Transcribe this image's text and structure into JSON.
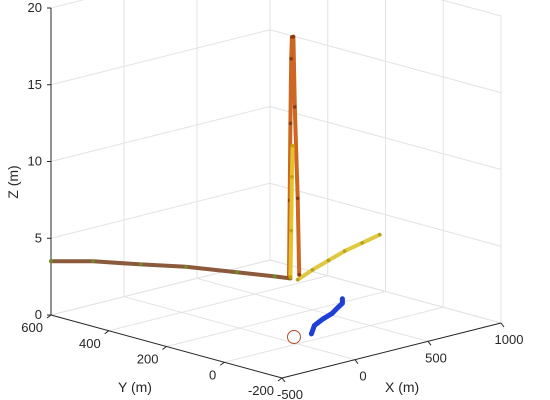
{
  "chart_data": {
    "type": "line",
    "view": "3d",
    "grid": true,
    "xlabel": "X (m)",
    "ylabel": "Y (m)",
    "zlabel": "Z (m)",
    "xlim": [
      -500,
      1000
    ],
    "ylim": [
      -200,
      600
    ],
    "zlim": [
      0,
      20
    ],
    "xticks": [
      "-500",
      "0",
      "500",
      "1000"
    ],
    "yticks": [
      "-200",
      "0",
      "200",
      "400",
      "600"
    ],
    "zticks": [
      "0",
      "5",
      "10",
      "15",
      "20"
    ],
    "series": [
      {
        "color": "#8b5a3c",
        "marker_color": "#6b8e23",
        "x": [
          -500,
          -350,
          -200,
          -50,
          100,
          200,
          250
        ],
        "y": [
          600,
          530,
          440,
          360,
          260,
          180,
          150
        ],
        "z": [
          3.5,
          3.5,
          3.4,
          3.3,
          3.1,
          3.0,
          2.9
        ]
      },
      {
        "color": "#e0c840",
        "marker_color": "#b8a020",
        "x": [
          300,
          420,
          560,
          700,
          850,
          1000
        ],
        "y": [
          150,
          160,
          175,
          190,
          205,
          220
        ],
        "z": [
          2.7,
          3.0,
          3.2,
          3.4,
          3.5,
          3.6
        ]
      },
      {
        "color": "#cc6622",
        "marker_color": "#8a3a10",
        "x": [
          240,
          245,
          250,
          255,
          260,
          270,
          280,
          300,
          310
        ],
        "y": [
          150,
          150,
          150,
          150,
          150,
          150,
          150,
          150,
          150
        ],
        "z": [
          3.0,
          8.0,
          13.0,
          17.2,
          18.6,
          18.6,
          14.0,
          8.0,
          3.0
        ]
      },
      {
        "color": "#e6c22a",
        "marker_color": "#c9a000",
        "x": [
          250,
          255,
          260,
          265
        ],
        "y": [
          150,
          150,
          150,
          150
        ],
        "z": [
          3.0,
          6.0,
          9.5,
          11.5
        ]
      },
      {
        "color": "#1f3fd6",
        "marker_color": "#1f3fd6",
        "x": [
          -200,
          -120,
          -20,
          80,
          160,
          230,
          270
        ],
        "y": [
          -150,
          -120,
          -100,
          -80,
          -60,
          -40,
          -20
        ],
        "z": [
          1.9,
          2.1,
          2.2,
          2.2,
          2.3,
          2.3,
          2.4
        ]
      }
    ]
  }
}
